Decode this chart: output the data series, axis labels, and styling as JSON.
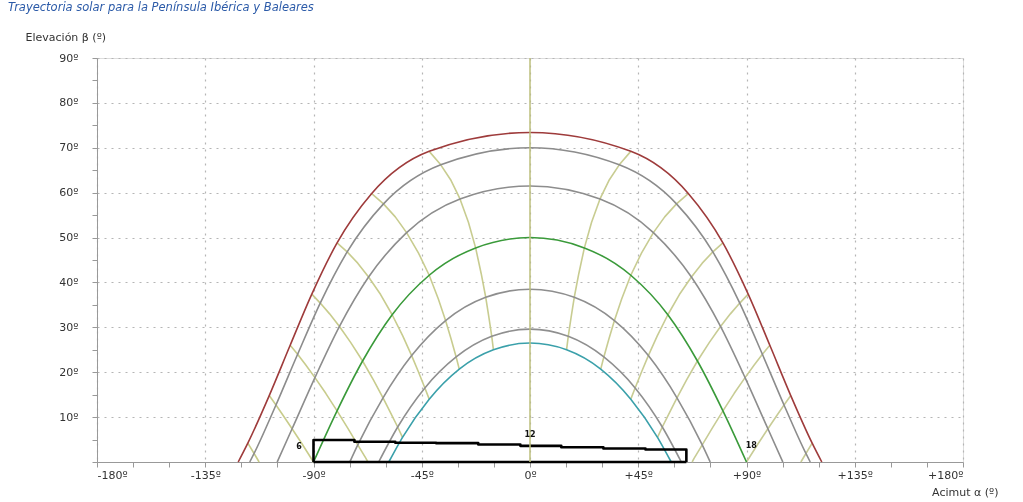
{
  "chart_data": {
    "type": "line",
    "title": "Trayectoria solar para la Península Ibérica y Baleares",
    "xlabel": "Acimut α (º)",
    "ylabel": "Elevación β (º)",
    "xlim": [
      -180,
      180
    ],
    "ylim": [
      0,
      90
    ],
    "xticks": [
      {
        "value": -180,
        "label": "-180º"
      },
      {
        "value": -165,
        "label": null
      },
      {
        "value": -150,
        "label": null
      },
      {
        "value": -135,
        "label": "-135º"
      },
      {
        "value": -120,
        "label": null
      },
      {
        "value": -105,
        "label": null
      },
      {
        "value": -90,
        "label": "-90º"
      },
      {
        "value": -75,
        "label": null
      },
      {
        "value": -60,
        "label": null
      },
      {
        "value": -45,
        "label": "-45º"
      },
      {
        "value": -30,
        "label": null
      },
      {
        "value": -15,
        "label": null
      },
      {
        "value": 0,
        "label": "0º"
      },
      {
        "value": 15,
        "label": null
      },
      {
        "value": 30,
        "label": null
      },
      {
        "value": 45,
        "label": "+45º"
      },
      {
        "value": 60,
        "label": null
      },
      {
        "value": 75,
        "label": null
      },
      {
        "value": 90,
        "label": "+90º"
      },
      {
        "value": 105,
        "label": null
      },
      {
        "value": 120,
        "label": null
      },
      {
        "value": 135,
        "label": "+135º"
      },
      {
        "value": 150,
        "label": null
      },
      {
        "value": 165,
        "label": null
      },
      {
        "value": 180,
        "label": "+180º"
      }
    ],
    "yticks": [
      {
        "value": 0,
        "label": null
      },
      {
        "value": 5,
        "label": null
      },
      {
        "value": 10,
        "label": "10º"
      },
      {
        "value": 15,
        "label": null
      },
      {
        "value": 20,
        "label": "20º"
      },
      {
        "value": 25,
        "label": null
      },
      {
        "value": 30,
        "label": "30º"
      },
      {
        "value": 35,
        "label": null
      },
      {
        "value": 40,
        "label": "40º"
      },
      {
        "value": 45,
        "label": null
      },
      {
        "value": 50,
        "label": "50º"
      },
      {
        "value": 55,
        "label": null
      },
      {
        "value": 60,
        "label": "60º"
      },
      {
        "value": 65,
        "label": null
      },
      {
        "value": 70,
        "label": "70º"
      },
      {
        "value": 75,
        "label": null
      },
      {
        "value": 80,
        "label": "80º"
      },
      {
        "value": 85,
        "label": null
      },
      {
        "value": 90,
        "label": "90º"
      }
    ],
    "grid": true,
    "marker": "none",
    "ref_lines": [
      {
        "axis": "x",
        "value": 0,
        "color": "#bcbf7c"
      }
    ],
    "annotations": [
      {
        "text": "6",
        "x": -96,
        "y": 3.3
      },
      {
        "text": "12",
        "x": 0,
        "y": 6
      },
      {
        "text": "18",
        "x": 92,
        "y": 3.6
      }
    ],
    "series": [
      {
        "color": "#c8cc8a",
        "x": [
          -117.3,
          -114.7,
          -112.6
        ],
        "values": [
          4.2,
          1.9,
          0
        ]
      },
      {
        "color": "#c8cc8b",
        "x": [
          -108.4,
          -105.6,
          -102.4,
          -98.9,
          -94.6,
          -90.0
        ],
        "values": [
          14.8,
          12.7,
          10.2,
          7.4,
          3.9,
          0
        ]
      },
      {
        "color": "#c8cc8c",
        "x": [
          -99.7,
          -96.6,
          -93.2,
          -89.4,
          -84.9,
          -80.2,
          -75.7,
          -71.6,
          -68.2,
          -67.4
        ],
        "values": [
          26.0,
          24.0,
          21.6,
          18.8,
          15.3,
          11.4,
          7.5,
          3.8,
          0.8,
          0
        ]
      },
      {
        "color": "#c8cc8d",
        "x": [
          -90.7,
          -87.2,
          -83.3,
          -79.2,
          -74.5,
          -69.6,
          -65.1,
          -61.1,
          -58.0,
          -55.0,
          -53.0
        ],
        "values": [
          37.4,
          35.4,
          33.0,
          30.2,
          26.6,
          22.5,
          18.3,
          14.3,
          11.0,
          7.8,
          5.5
        ]
      },
      {
        "color": "#c8cc8e",
        "x": [
          -80.2,
          -76.0,
          -71.6,
          -67.1,
          -62.1,
          -57.3,
          -52.9,
          -49.2,
          -46.4,
          -43.7,
          -41.9
        ],
        "values": [
          48.8,
          46.8,
          44.3,
          41.2,
          37.3,
          32.8,
          28.1,
          23.7,
          20.1,
          16.5,
          14.0
        ]
      },
      {
        "color": "#c8cc8f",
        "x": [
          -65.8,
          -60.9,
          -56.0,
          -51.3,
          -46.4,
          -41.9,
          -38.1,
          -35.1,
          -32.8,
          -30.7,
          -29.4
        ],
        "values": [
          59.8,
          57.5,
          54.6,
          51.1,
          46.6,
          41.6,
          36.3,
          31.5,
          27.4,
          23.4,
          20.7
        ]
      },
      {
        "color": "#c8cc90",
        "x": [
          -41.9,
          -37.1,
          -32.8,
          -29.1,
          -25.6,
          -22.6,
          -20.3,
          -18.4,
          -17.1,
          -15.9,
          -15.2
        ],
        "values": [
          69.2,
          66.2,
          62.7,
          58.6,
          53.4,
          47.7,
          42.0,
          36.7,
          32.3,
          28.0,
          25.0
        ]
      },
      {
        "color": "#c8cc91",
        "x": [
          41.9,
          37.1,
          32.8,
          29.1,
          25.6,
          22.6,
          20.3,
          18.4,
          17.1,
          15.9,
          15.2
        ],
        "values": [
          69.2,
          66.2,
          62.7,
          58.6,
          53.4,
          47.7,
          42.0,
          36.7,
          32.3,
          28.0,
          25.0
        ]
      },
      {
        "color": "#c8cc92",
        "x": [
          65.8,
          60.9,
          56.0,
          51.3,
          46.4,
          41.9,
          38.1,
          35.1,
          32.8,
          30.7,
          29.4
        ],
        "values": [
          59.8,
          57.5,
          54.6,
          51.1,
          46.6,
          41.6,
          36.3,
          31.5,
          27.4,
          23.4,
          20.7
        ]
      },
      {
        "color": "#c8cc93",
        "x": [
          80.2,
          76.0,
          71.6,
          67.1,
          62.1,
          57.3,
          52.9,
          49.2,
          46.4,
          43.7,
          41.9
        ],
        "values": [
          48.8,
          46.8,
          44.3,
          41.2,
          37.3,
          32.8,
          28.1,
          23.7,
          20.1,
          16.5,
          14.0
        ]
      },
      {
        "color": "#c8cc94",
        "x": [
          90.7,
          87.2,
          83.3,
          79.2,
          74.5,
          69.6,
          65.1,
          61.1,
          58.0,
          55.0,
          53.0
        ],
        "values": [
          37.4,
          35.4,
          33.0,
          30.2,
          26.6,
          22.5,
          18.3,
          14.3,
          11.0,
          7.8,
          5.5
        ]
      },
      {
        "color": "#c8cc95",
        "x": [
          99.7,
          96.6,
          93.2,
          89.4,
          84.9,
          80.2,
          75.7,
          71.6,
          68.2,
          67.4
        ],
        "values": [
          26.0,
          24.0,
          21.6,
          18.8,
          15.3,
          11.4,
          7.5,
          3.8,
          0.8,
          0
        ]
      },
      {
        "color": "#c8cc96",
        "x": [
          108.4,
          105.6,
          102.4,
          98.9,
          94.6,
          90.0
        ],
        "values": [
          14.8,
          12.7,
          10.2,
          7.4,
          3.9,
          0
        ]
      },
      {
        "color": "#c8cc97",
        "x": [
          117.3,
          114.7,
          112.6
        ],
        "values": [
          4.2,
          1.9,
          0
        ]
      },
      {
        "color": "#9e3b3b",
        "x": [
          -121.3,
          -117.3,
          -108.4,
          -99.7,
          -90.7,
          -80.2,
          -65.8,
          -41.9,
          0,
          41.9,
          65.8,
          80.2,
          90.7,
          99.7,
          108.4,
          117.3,
          121.3
        ],
        "values": [
          0,
          4.2,
          14.8,
          26.0,
          37.4,
          48.8,
          59.8,
          69.2,
          73.4,
          69.2,
          59.8,
          48.8,
          37.4,
          26.0,
          14.8,
          4.2,
          0
        ]
      },
      {
        "color": "#8c8c8c",
        "x": [
          -116.5,
          -114.7,
          -105.6,
          -96.6,
          -87.2,
          -76.0,
          -60.9,
          -37.1,
          0,
          37.1,
          60.9,
          76.0,
          87.2,
          96.6,
          105.6,
          114.7,
          116.5
        ],
        "values": [
          0,
          1.9,
          12.7,
          24.0,
          35.4,
          46.8,
          57.5,
          66.2,
          70.0,
          66.2,
          57.5,
          46.8,
          35.4,
          24.0,
          12.7,
          1.9,
          0
        ]
      },
      {
        "color": "#8d8d8d",
        "x": [
          -105.1,
          -98.9,
          -89.4,
          -79.2,
          -67.1,
          -51.3,
          -29.1,
          0,
          29.1,
          51.3,
          67.1,
          79.2,
          89.4,
          98.9,
          105.1
        ],
        "values": [
          0,
          7.4,
          18.8,
          30.2,
          41.2,
          51.1,
          58.6,
          61.5,
          58.6,
          51.1,
          41.2,
          30.2,
          18.8,
          7.4,
          0
        ]
      },
      {
        "color": "#3a9a3a",
        "x": [
          -90.0,
          -80.2,
          -69.6,
          -57.3,
          -41.9,
          -22.6,
          0,
          22.6,
          41.9,
          57.3,
          69.6,
          80.2,
          90.0
        ],
        "values": [
          0,
          11.4,
          22.5,
          32.8,
          41.6,
          47.7,
          50.0,
          47.7,
          41.6,
          32.8,
          22.5,
          11.4,
          0
        ]
      },
      {
        "color": "#8e8e8e",
        "x": [
          -74.9,
          -71.6,
          -61.1,
          -49.2,
          -35.1,
          -18.4,
          0,
          18.4,
          35.1,
          49.2,
          61.1,
          71.6,
          74.9
        ],
        "values": [
          0,
          3.8,
          14.3,
          23.7,
          31.5,
          36.7,
          38.5,
          36.7,
          31.5,
          23.7,
          14.3,
          3.8,
          0
        ]
      },
      {
        "color": "#8f8f8f",
        "x": [
          -62.9,
          -55.0,
          -43.7,
          -30.7,
          -15.9,
          0,
          15.9,
          30.7,
          43.7,
          55.0,
          62.9
        ],
        "values": [
          0,
          7.8,
          16.5,
          23.4,
          28.0,
          29.6,
          28.0,
          23.4,
          16.5,
          7.8,
          0
        ]
      },
      {
        "color": "#3aa0aa",
        "x": [
          -58.7,
          -53.0,
          -41.9,
          -29.4,
          -15.2,
          0,
          15.2,
          29.4,
          41.9,
          53.0,
          58.7
        ],
        "values": [
          0,
          5.5,
          14.0,
          20.7,
          25.0,
          26.5,
          25.0,
          20.7,
          14.0,
          5.5,
          0
        ]
      },
      {
        "color": "#000000",
        "x": [
          -90,
          -90,
          -73,
          -73,
          -56,
          -56,
          -39,
          -39,
          -21.5,
          -21.5,
          -4,
          -4,
          13,
          13,
          30.5,
          30.5,
          48,
          48,
          65,
          65
        ],
        "values": [
          0,
          4.9,
          4.9,
          4.5,
          4.5,
          4.3,
          4.3,
          4.2,
          4.2,
          3.9,
          3.9,
          3.6,
          3.6,
          3.3,
          3.3,
          3.0,
          3.0,
          2.8,
          2.8,
          0
        ]
      },
      {
        "color": "#010101",
        "x": [
          -90,
          65
        ],
        "values": [
          0,
          0
        ]
      }
    ]
  }
}
